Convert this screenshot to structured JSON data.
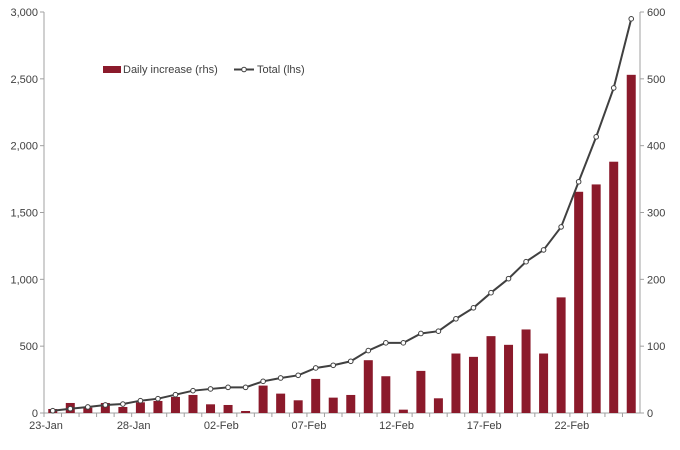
{
  "chart_data": {
    "type": "bar+line",
    "title": "",
    "xlabel": "",
    "categories": [
      "23-Jan",
      "24-Jan",
      "25-Jan",
      "26-Jan",
      "27-Jan",
      "28-Jan",
      "29-Jan",
      "30-Jan",
      "31-Jan",
      "01-Feb",
      "02-Feb",
      "03-Feb",
      "04-Feb",
      "05-Feb",
      "06-Feb",
      "07-Feb",
      "08-Feb",
      "09-Feb",
      "10-Feb",
      "11-Feb",
      "12-Feb",
      "13-Feb",
      "14-Feb",
      "15-Feb",
      "16-Feb",
      "17-Feb",
      "18-Feb",
      "19-Feb",
      "20-Feb",
      "21-Feb",
      "22-Feb",
      "23-Feb",
      "24-Feb",
      "25-Feb"
    ],
    "x_tick_labels": [
      "23-Jan",
      "28-Jan",
      "02-Feb",
      "07-Feb",
      "12-Feb",
      "17-Feb",
      "22-Feb"
    ],
    "series": [
      {
        "name": "Daily increase (rhs)",
        "type": "bar",
        "axis": "right",
        "color": "#8B1A2B",
        "values": [
          6,
          15,
          8,
          15,
          9,
          16,
          18,
          24,
          27,
          13,
          12,
          3,
          41,
          29,
          19,
          51,
          23,
          27,
          79,
          55,
          5,
          63,
          22,
          89,
          84,
          115,
          102,
          125,
          89,
          173,
          331,
          342,
          376,
          506
        ]
      },
      {
        "name": "Total (lhs)",
        "type": "line",
        "axis": "left",
        "color": "#404040",
        "values": [
          17,
          32,
          45,
          60,
          67,
          92,
          107,
          137,
          167,
          180,
          192,
          192,
          237,
          262,
          282,
          337,
          357,
          387,
          467,
          525,
          525,
          595,
          612,
          705,
          787,
          900,
          1005,
          1132,
          1220,
          1392,
          1730,
          2066,
          2432,
          2949
        ]
      }
    ],
    "left_axis": {
      "range": [
        0,
        3000
      ],
      "ticks": [
        "0",
        "500",
        "1,000",
        "1,500",
        "2,000",
        "2,500",
        "3,000"
      ]
    },
    "right_axis": {
      "range": [
        0,
        600
      ],
      "ticks": [
        "0",
        "100",
        "200",
        "300",
        "400",
        "500",
        "600"
      ]
    },
    "grid": false,
    "legend": "top-left"
  }
}
